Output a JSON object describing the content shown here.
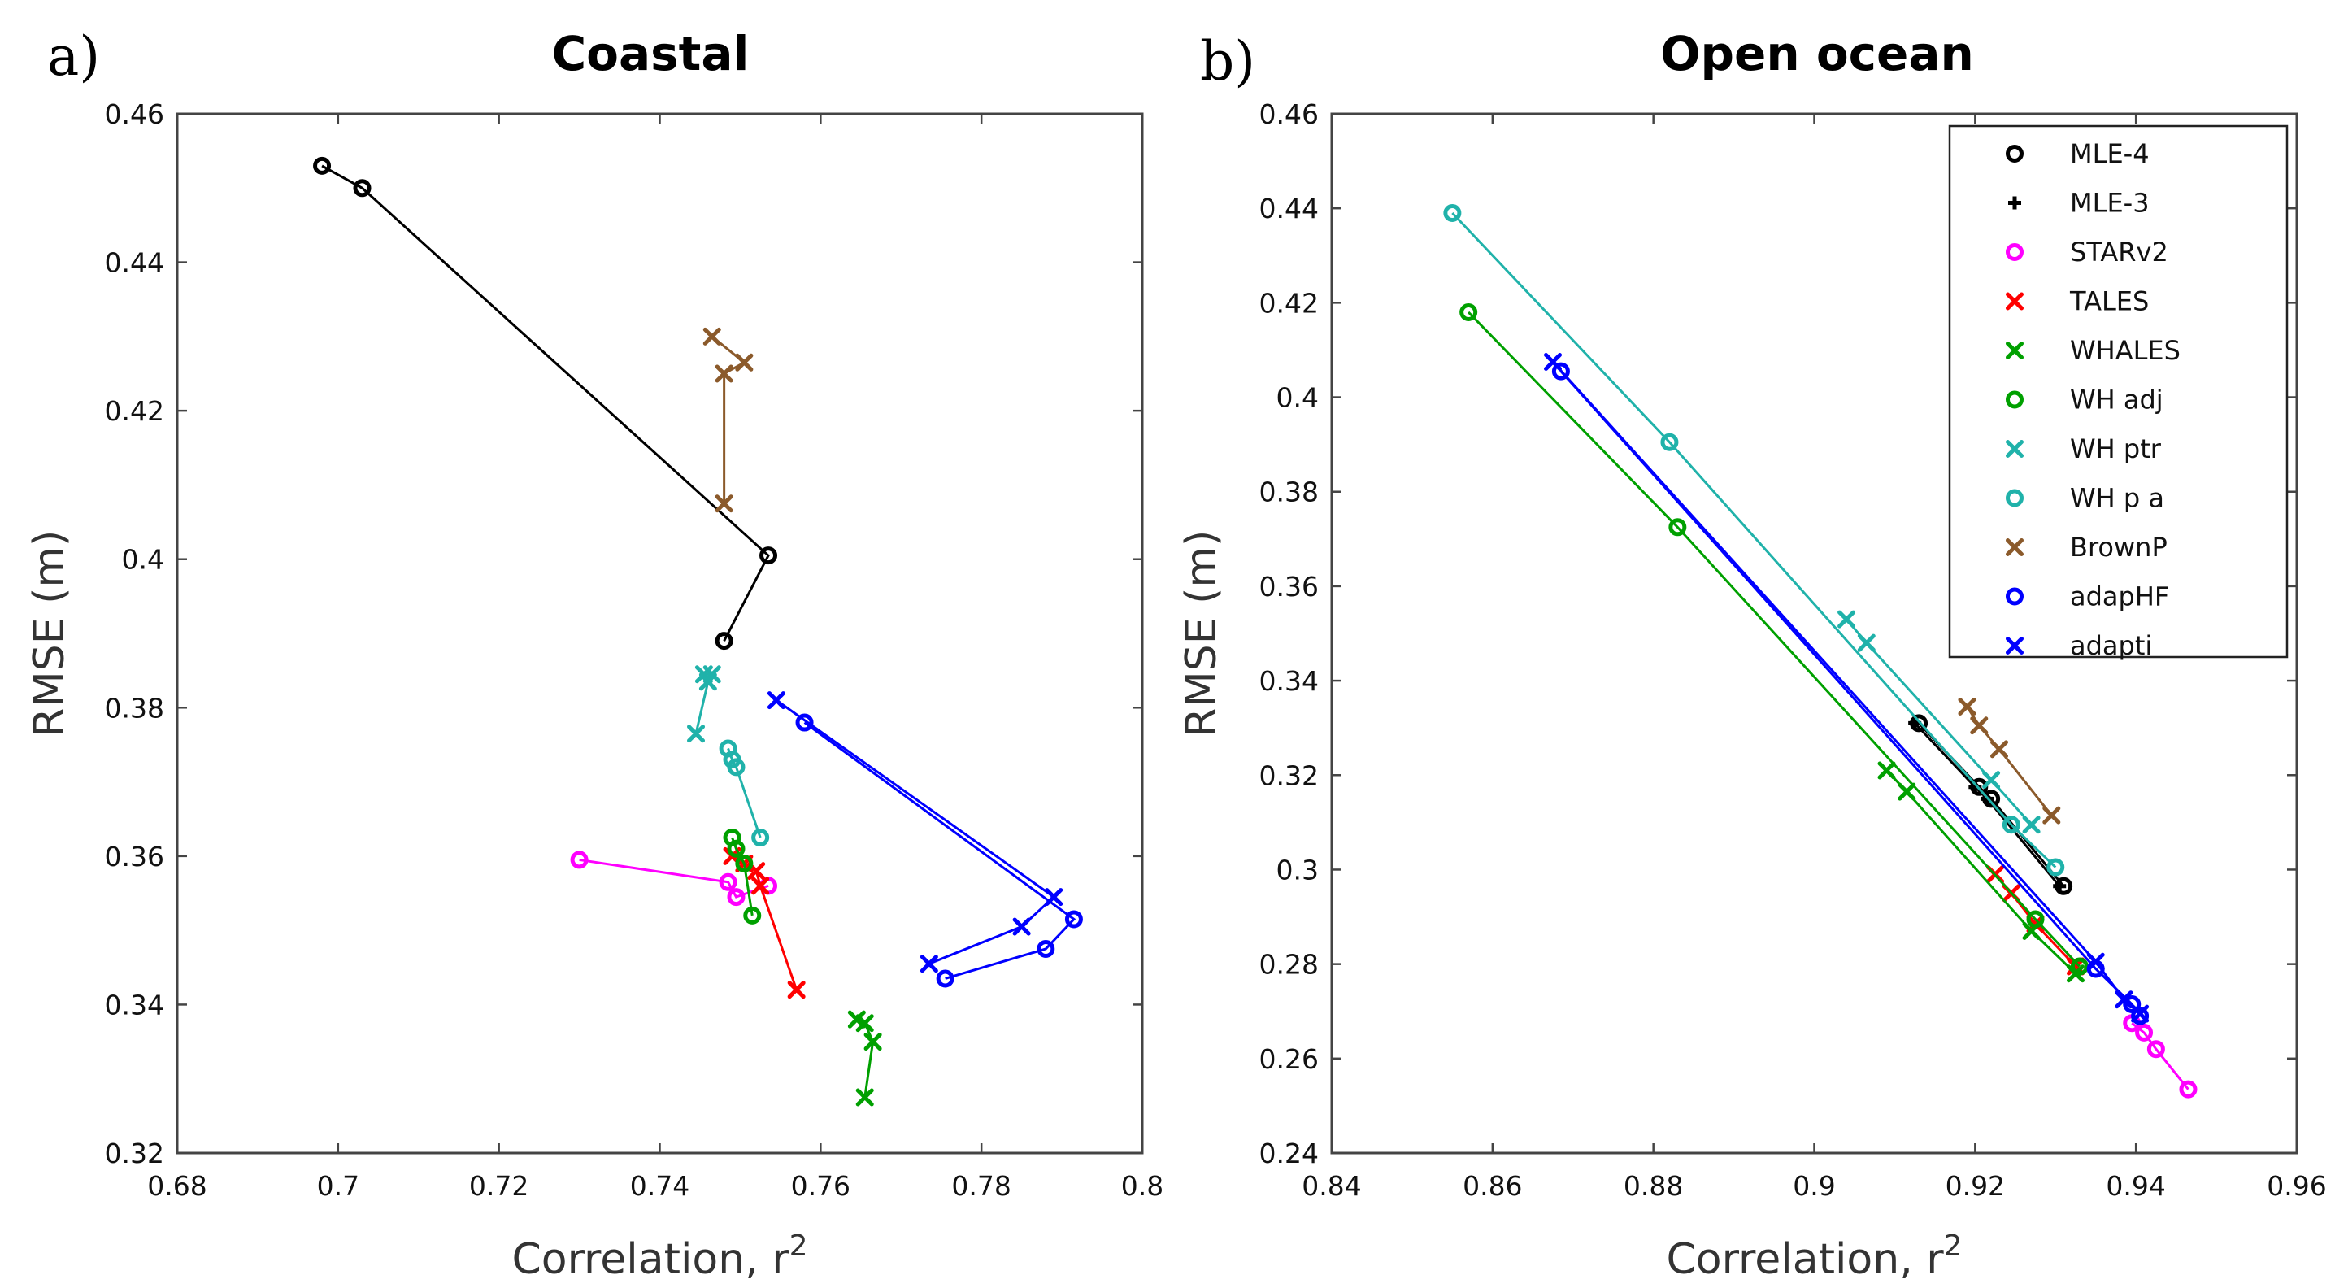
{
  "figure": {
    "panel_a_letter": "a)",
    "panel_b_letter": "b)"
  },
  "chart_data": [
    {
      "type": "scatter",
      "title": "Coastal",
      "xlabel": "Correlation, r",
      "xlabel_superscript": "2",
      "ylabel": "RMSE (m)",
      "xlim": [
        0.68,
        0.8
      ],
      "ylim": [
        0.32,
        0.46
      ],
      "xticks": [
        0.68,
        0.7,
        0.72,
        0.74,
        0.76,
        0.78,
        0.8
      ],
      "xtick_labels": [
        "0.68",
        "0.7",
        "0.72",
        "0.74",
        "0.76",
        "0.78",
        "0.8"
      ],
      "yticks": [
        0.32,
        0.34,
        0.36,
        0.38,
        0.4,
        0.42,
        0.44,
        0.46
      ],
      "ytick_labels": [
        "0.32",
        "0.34",
        "0.36",
        "0.38",
        "0.4",
        "0.42",
        "0.44",
        "0.46"
      ],
      "grid": false,
      "series": [
        {
          "name": "MLE-4",
          "color": "#000000",
          "marker": "o",
          "points": [
            [
              0.698,
              0.453
            ],
            [
              0.703,
              0.45
            ],
            [
              0.7535,
              0.4005
            ],
            [
              0.748,
              0.389
            ]
          ]
        },
        {
          "name": "STARv2",
          "color": "#ff00ff",
          "marker": "o",
          "points": [
            [
              0.73,
              0.3595
            ],
            [
              0.7485,
              0.3565
            ],
            [
              0.7495,
              0.3545
            ],
            [
              0.7535,
              0.356
            ]
          ]
        },
        {
          "name": "TALES",
          "color": "#ff0000",
          "marker": "x",
          "points": [
            [
              0.749,
              0.36
            ],
            [
              0.7505,
              0.359
            ],
            [
              0.752,
              0.358
            ],
            [
              0.7525,
              0.356
            ],
            [
              0.757,
              0.342
            ]
          ]
        },
        {
          "name": "WHALES",
          "color": "#00a000",
          "marker": "x",
          "points": [
            [
              0.7645,
              0.338
            ],
            [
              0.7655,
              0.3375
            ],
            [
              0.7665,
              0.335
            ],
            [
              0.7655,
              0.3275
            ]
          ]
        },
        {
          "name": "WH adj",
          "color": "#00a000",
          "marker": "o",
          "points": [
            [
              0.749,
              0.3625
            ],
            [
              0.7495,
              0.361
            ],
            [
              0.7505,
              0.359
            ],
            [
              0.7515,
              0.352
            ]
          ]
        },
        {
          "name": "WH ptr",
          "color": "#20b2aa",
          "marker": "x",
          "points": [
            [
              0.7455,
              0.3845
            ],
            [
              0.7465,
              0.3845
            ],
            [
              0.746,
              0.3835
            ],
            [
              0.7445,
              0.3765
            ]
          ]
        },
        {
          "name": "WH p a",
          "color": "#20b2aa",
          "marker": "o",
          "points": [
            [
              0.7485,
              0.3745
            ],
            [
              0.749,
              0.373
            ],
            [
              0.7495,
              0.372
            ],
            [
              0.7525,
              0.3625
            ]
          ]
        },
        {
          "name": "BrownP",
          "color": "#8b5a2b",
          "marker": "x",
          "points": [
            [
              0.7465,
              0.43
            ],
            [
              0.7505,
              0.4265
            ],
            [
              0.748,
              0.425
            ],
            [
              0.748,
              0.4075
            ]
          ]
        },
        {
          "name": "adapHF",
          "color": "#0000ff",
          "marker": "o",
          "points": [
            [
              0.758,
              0.378
            ],
            [
              0.7915,
              0.3515
            ],
            [
              0.788,
              0.3475
            ],
            [
              0.7755,
              0.3435
            ]
          ]
        },
        {
          "name": "adapti",
          "color": "#0000ff",
          "marker": "x",
          "points": [
            [
              0.7545,
              0.381
            ],
            [
              0.789,
              0.3545
            ],
            [
              0.785,
              0.3505
            ],
            [
              0.7735,
              0.3455
            ]
          ]
        }
      ]
    },
    {
      "type": "scatter",
      "title": "Open ocean",
      "xlabel": "Correlation, r",
      "xlabel_superscript": "2",
      "ylabel": "RMSE (m)",
      "xlim": [
        0.84,
        0.96
      ],
      "ylim": [
        0.24,
        0.46
      ],
      "xticks": [
        0.84,
        0.86,
        0.88,
        0.9,
        0.92,
        0.94,
        0.96
      ],
      "xtick_labels": [
        "0.84",
        "0.86",
        "0.88",
        "0.9",
        "0.92",
        "0.94",
        "0.96"
      ],
      "yticks": [
        0.24,
        0.26,
        0.28,
        0.3,
        0.32,
        0.34,
        0.36,
        0.38,
        0.4,
        0.42,
        0.44,
        0.46
      ],
      "ytick_labels": [
        "0.24",
        "0.26",
        "0.28",
        "0.3",
        "0.32",
        "0.34",
        "0.36",
        "0.38",
        "0.4",
        "0.42",
        "0.44",
        "0.46"
      ],
      "grid": false,
      "legend_position": "top-right",
      "series": [
        {
          "name": "MLE-4",
          "color": "#000000",
          "marker": "o",
          "points": [
            [
              0.913,
              0.331
            ],
            [
              0.9205,
              0.3175
            ],
            [
              0.922,
              0.315
            ],
            [
              0.931,
              0.2965
            ]
          ]
        },
        {
          "name": "MLE-3",
          "color": "#000000",
          "marker": "+",
          "points": [
            [
              0.9125,
              0.331
            ],
            [
              0.92,
              0.3175
            ],
            [
              0.9215,
              0.315
            ],
            [
              0.9305,
              0.2965
            ]
          ]
        },
        {
          "name": "STARv2",
          "color": "#ff00ff",
          "marker": "o",
          "points": [
            [
              0.9395,
              0.2675
            ],
            [
              0.941,
              0.2655
            ],
            [
              0.9425,
              0.262
            ],
            [
              0.9465,
              0.2535
            ]
          ]
        },
        {
          "name": "TALES",
          "color": "#ff0000",
          "marker": "x",
          "points": [
            [
              0.9225,
              0.299
            ],
            [
              0.9245,
              0.295
            ],
            [
              0.9275,
              0.2885
            ],
            [
              0.9325,
              0.2795
            ]
          ]
        },
        {
          "name": "WHALES",
          "color": "#00a000",
          "marker": "x",
          "points": [
            [
              0.909,
              0.321
            ],
            [
              0.9115,
              0.3165
            ],
            [
              0.927,
              0.287
            ],
            [
              0.9325,
              0.278
            ]
          ]
        },
        {
          "name": "WH adj",
          "color": "#00a000",
          "marker": "o",
          "points": [
            [
              0.857,
              0.418
            ],
            [
              0.883,
              0.3725
            ],
            [
              0.9275,
              0.2895
            ],
            [
              0.933,
              0.2795
            ]
          ]
        },
        {
          "name": "WH ptr",
          "color": "#20b2aa",
          "marker": "x",
          "points": [
            [
              0.904,
              0.353
            ],
            [
              0.9065,
              0.348
            ],
            [
              0.922,
              0.319
            ],
            [
              0.927,
              0.3095
            ]
          ]
        },
        {
          "name": "WH p a",
          "color": "#20b2aa",
          "marker": "o",
          "points": [
            [
              0.855,
              0.439
            ],
            [
              0.882,
              0.3905
            ],
            [
              0.9245,
              0.3095
            ],
            [
              0.93,
              0.3005
            ]
          ]
        },
        {
          "name": "BrownP",
          "color": "#8b5a2b",
          "marker": "x",
          "points": [
            [
              0.919,
              0.3345
            ],
            [
              0.9205,
              0.3305
            ],
            [
              0.923,
              0.3255
            ],
            [
              0.9295,
              0.3115
            ]
          ]
        },
        {
          "name": "adapHF",
          "color": "#0000ff",
          "marker": "o",
          "points": [
            [
              0.8685,
              0.4055
            ],
            [
              0.935,
              0.279
            ],
            [
              0.9395,
              0.2715
            ],
            [
              0.9405,
              0.269
            ]
          ]
        },
        {
          "name": "adapti",
          "color": "#0000ff",
          "marker": "x",
          "points": [
            [
              0.8675,
              0.4075
            ],
            [
              0.935,
              0.2805
            ],
            [
              0.9385,
              0.2725
            ],
            [
              0.9405,
              0.2695
            ]
          ]
        }
      ]
    }
  ]
}
